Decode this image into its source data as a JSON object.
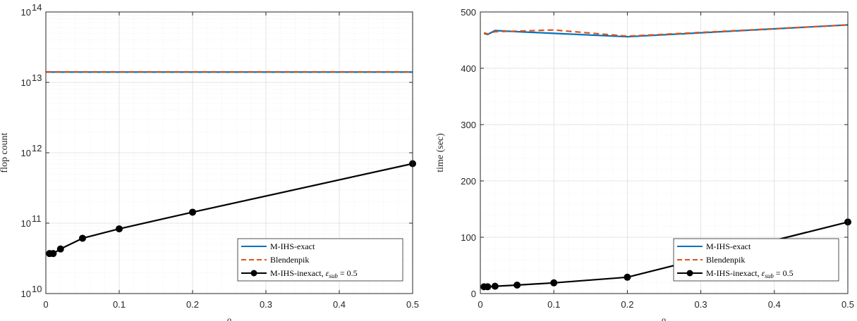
{
  "chart_data": [
    {
      "type": "line",
      "xlabel": "β",
      "ylabel": "flop count",
      "xlim": [
        0,
        0.5
      ],
      "ylim": [
        10000000000,
        100000000000000
      ],
      "yscale": "log",
      "grid": true,
      "minor_grid": true,
      "legend_position": "bottom-right",
      "xticks": [
        "0",
        "0.1",
        "0.2",
        "0.3",
        "0.4",
        "0.5"
      ],
      "yticks": [
        {
          "base": "10",
          "exp": "10"
        },
        {
          "base": "10",
          "exp": "11"
        },
        {
          "base": "10",
          "exp": "12"
        },
        {
          "base": "10",
          "exp": "13"
        },
        {
          "base": "10",
          "exp": "14"
        }
      ],
      "series": [
        {
          "name": "M-IHS-exact",
          "color": "#0072BD",
          "style": "solid",
          "x": [
            0,
            0.5
          ],
          "y": [
            14000000000000,
            14000000000000
          ]
        },
        {
          "name": "Blendenpik",
          "color": "#D95319",
          "style": "dashed",
          "x": [
            0,
            0.5
          ],
          "y": [
            14100000000000,
            14100000000000
          ]
        },
        {
          "name": "M-IHS-inexact, ε_sub = 0.5",
          "color": "#000000",
          "style": "solid-marker",
          "x": [
            0.005,
            0.01,
            0.02,
            0.05,
            0.1,
            0.2,
            0.5
          ],
          "y": [
            37000000000,
            37000000000,
            43000000000,
            61000000000,
            83000000000,
            143000000000,
            700000000000
          ]
        }
      ]
    },
    {
      "type": "line",
      "xlabel": "β",
      "ylabel": "time (sec)",
      "xlim": [
        0,
        0.5
      ],
      "ylim": [
        0,
        500
      ],
      "yscale": "linear",
      "grid": true,
      "minor_grid": true,
      "legend_position": "bottom-right",
      "xticks": [
        "0",
        "0.1",
        "0.2",
        "0.3",
        "0.4",
        "0.5"
      ],
      "yticks": [
        "0",
        "100",
        "200",
        "300",
        "400",
        "500"
      ],
      "series": [
        {
          "name": "M-IHS-exact",
          "color": "#0072BD",
          "style": "solid",
          "x": [
            0.005,
            0.01,
            0.02,
            0.05,
            0.1,
            0.2,
            0.5
          ],
          "y": [
            462,
            460,
            467,
            465,
            462,
            456,
            477
          ]
        },
        {
          "name": "Blendenpik",
          "color": "#D95319",
          "style": "dashed",
          "x": [
            0.005,
            0.01,
            0.02,
            0.05,
            0.1,
            0.2,
            0.5
          ],
          "y": [
            463,
            461,
            465,
            466,
            468,
            457,
            477
          ]
        },
        {
          "name": "M-IHS-inexact, ε_sub = 0.5",
          "color": "#000000",
          "style": "solid-marker",
          "x": [
            0.005,
            0.01,
            0.02,
            0.05,
            0.1,
            0.2,
            0.5
          ],
          "y": [
            12,
            12,
            13,
            15,
            19,
            29,
            127
          ]
        }
      ]
    }
  ],
  "legend": {
    "exact_label": "M-IHS-exact",
    "blend_label": "Blendenpik",
    "inexact_prefix": "M-IHS-inexact, ",
    "eps_symbol": "ε",
    "eps_sub": "sub",
    "eps_value": " = 0.5"
  }
}
